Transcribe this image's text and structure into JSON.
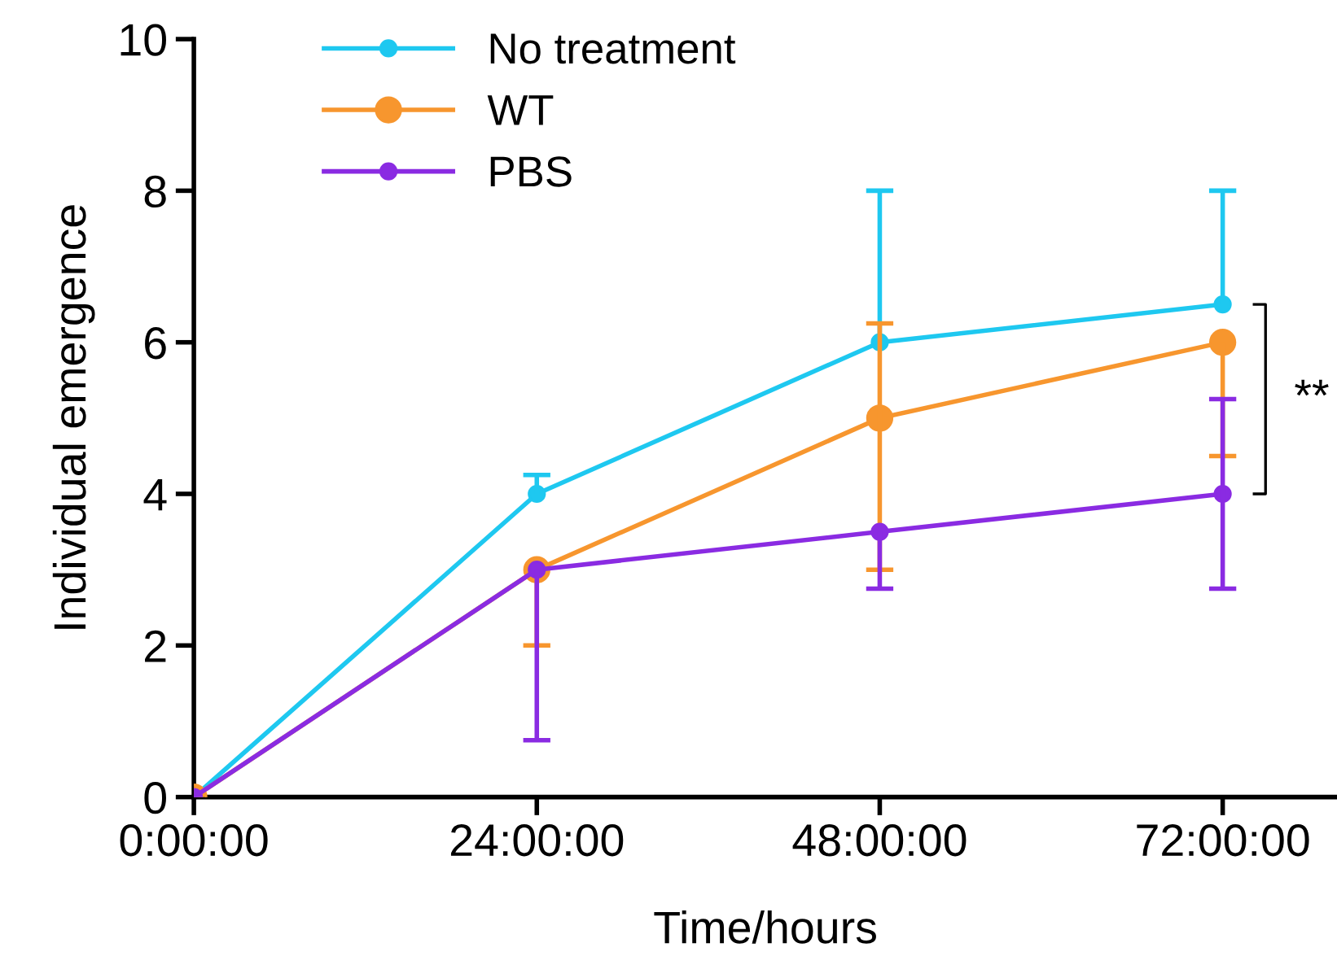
{
  "chart_data": {
    "type": "line",
    "xlabel": "Time/hours",
    "ylabel": "Individual emergence",
    "x": [
      0,
      24,
      48,
      72
    ],
    "series": [
      {
        "name": "No treatment",
        "color": "#1ec8f0",
        "values": [
          0,
          4,
          6,
          6.5
        ],
        "errors": [
          null,
          [
            4,
            4.25
          ],
          [
            6,
            8
          ],
          [
            6.5,
            8
          ]
        ]
      },
      {
        "name": "WT",
        "color": "#f7962e",
        "values": [
          0,
          3,
          5,
          6
        ],
        "errors": [
          null,
          [
            2,
            3
          ],
          [
            3,
            6.25
          ],
          [
            4.5,
            6
          ]
        ]
      },
      {
        "name": "PBS",
        "color": "#8a2be2",
        "values": [
          0,
          3,
          3.5,
          4
        ],
        "errors": [
          null,
          [
            0.75,
            3
          ],
          [
            2.75,
            3.5
          ],
          [
            2.75,
            5.25
          ]
        ]
      }
    ],
    "xlim": [
      0,
      80
    ],
    "xticks": [
      {
        "value": 0,
        "label": "0:00:00"
      },
      {
        "value": 24,
        "label": "24:00:00"
      },
      {
        "value": 48,
        "label": "48:00:00"
      },
      {
        "value": 72,
        "label": "72:00:00"
      }
    ],
    "ylim": [
      0,
      10
    ],
    "yticks": [
      0,
      2,
      4,
      6,
      8,
      10
    ],
    "annotations": [
      "**"
    ],
    "legend": "top left",
    "marker": "circle",
    "line_style": "solid",
    "grid": false
  }
}
